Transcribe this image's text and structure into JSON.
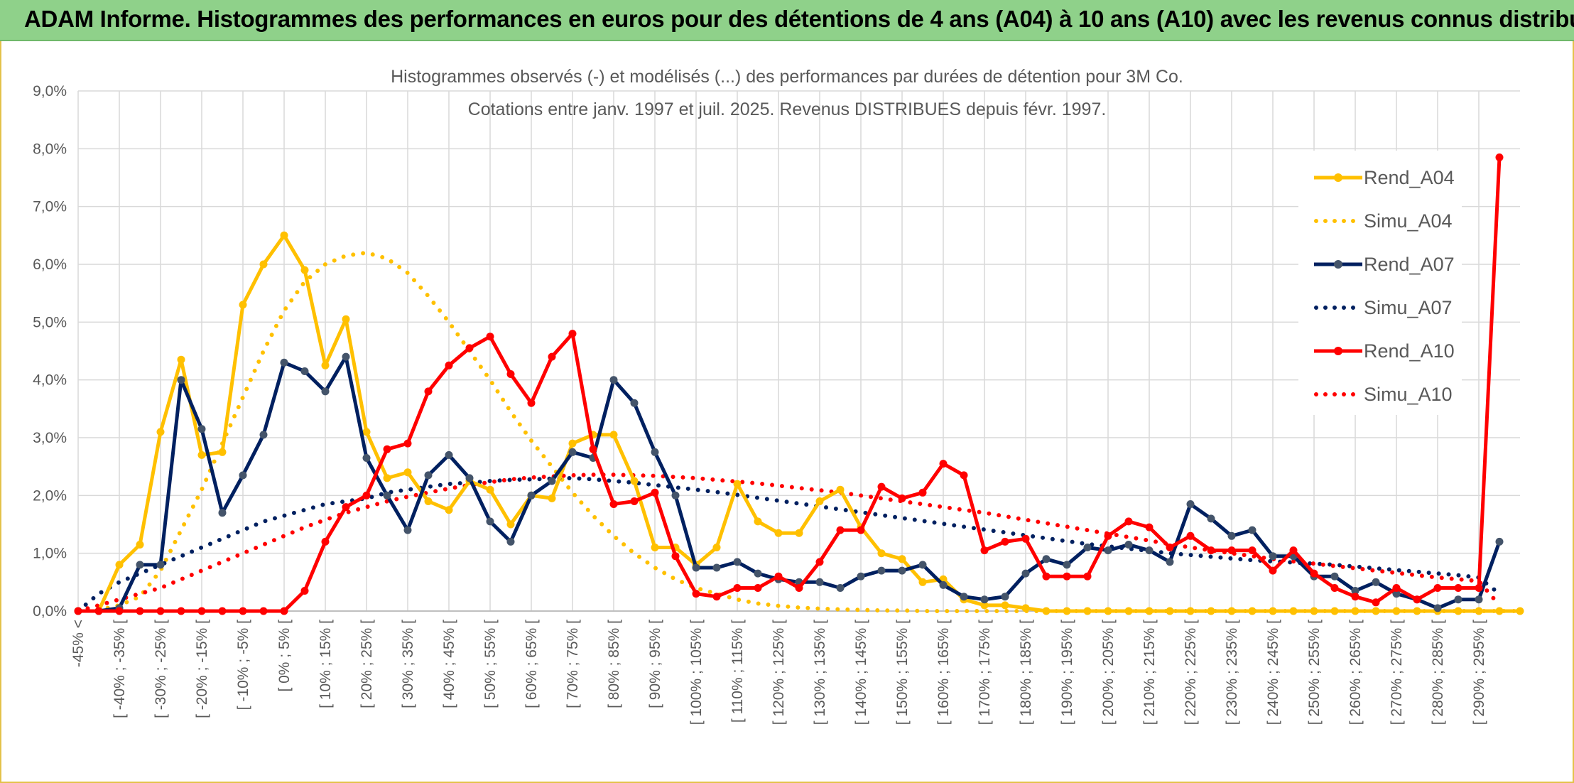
{
  "header": {
    "title": "ADAM Informe. Histogrammes des performances en euros pour des détentions de 4 ans (A04) à 10 ans (A10) avec les revenus connus distribués"
  },
  "colors": {
    "banner": "#8fd18a",
    "a04": "#ffc000",
    "a07": "#002060",
    "a07_marker": "#44546a",
    "a10": "#ff0000",
    "grid": "#d9d9d9",
    "text": "#595959"
  },
  "chart_data": {
    "type": "line",
    "title": "Histogrammes observés (-) et modélisés (...) des performances par durées de détention pour 3M Co.",
    "subtitle": "Cotations entre janv. 1997 et juil. 2025. Revenus DISTRIBUES depuis févr. 1997.",
    "xlabel": "",
    "ylabel": "",
    "ylim": [
      0,
      9
    ],
    "y_ticks": [
      "0,0%",
      "1,0%",
      "2,0%",
      "3,0%",
      "4,0%",
      "5,0%",
      "6,0%",
      "7,0%",
      "8,0%",
      "9,0%"
    ],
    "x_ticks": [
      "-45% <",
      "[ -40% ; -35% [",
      "[ -30% ; -25% [",
      "[ -20% ; -15% [",
      "[ -10% ; -5% [",
      "[ 0% ; 5% [",
      "[ 10% ; 15% [",
      "[ 20% ; 25% [",
      "[ 30% ; 35% [",
      "[ 40% ; 45% [",
      "[ 50% ; 55% [",
      "[ 60% ; 65% [",
      "[ 70% ; 75% [",
      "[ 80% ; 85% [",
      "[ 90% ; 95% [",
      "[ 100% ; 105% [",
      "[ 110% ; 115% [",
      "[ 120% ; 125% [",
      "[ 130% ; 135% [",
      "[ 140% ; 145% [",
      "[ 150% ; 155% [",
      "[ 160% ; 165% [",
      "[ 170% ; 175% [",
      "[ 180% ; 185% [",
      "[ 190% ; 195% [",
      "[ 200% ; 205% [",
      "[ 210% ; 215% [",
      "[ 220% ; 225% [",
      "[ 230% ; 235% [",
      "[ 240% ; 245% [",
      "[ 250% ; 255% [",
      "[ 260% ; 265% [",
      "[ 270% ; 275% [",
      "[ 280% ; 285% [",
      "[ 290% ; 295% ["
    ],
    "grid": true,
    "legend_position": "right",
    "series": [
      {
        "name": "Rend_A04",
        "style": "solid",
        "color": "#ffc000",
        "values": [
          0,
          0,
          0.8,
          1.15,
          3.1,
          4.35,
          2.7,
          2.75,
          5.3,
          6.0,
          6.5,
          5.9,
          4.25,
          5.05,
          3.1,
          2.3,
          2.4,
          1.9,
          1.75,
          2.25,
          2.1,
          1.5,
          2.0,
          1.95,
          2.9,
          3.05,
          3.05,
          2.25,
          1.1,
          1.1,
          0.8,
          1.1,
          2.2,
          1.55,
          1.35,
          1.35,
          1.9,
          2.1,
          1.45,
          1.0,
          0.9,
          0.5,
          0.55,
          0.2,
          0.1,
          0.1,
          0.05,
          0,
          0,
          0,
          0,
          0,
          0,
          0,
          0,
          0,
          0,
          0,
          0,
          0,
          0,
          0,
          0,
          0,
          0,
          0,
          0,
          0,
          0,
          0,
          0
        ]
      },
      {
        "name": "Simu_A04",
        "style": "dotted",
        "color": "#ffc000",
        "values": [
          0,
          0.02,
          0.1,
          0.25,
          0.7,
          1.4,
          2.1,
          2.9,
          3.7,
          4.5,
          5.2,
          5.7,
          6.0,
          6.15,
          6.2,
          6.1,
          5.85,
          5.45,
          5.0,
          4.5,
          4.0,
          3.45,
          2.95,
          2.5,
          2.05,
          1.65,
          1.3,
          1.0,
          0.75,
          0.55,
          0.4,
          0.3,
          0.2,
          0.13,
          0.09,
          0.06,
          0.04,
          0.03,
          0.02,
          0.01,
          0.01,
          0,
          0,
          0,
          0,
          0,
          0,
          0,
          0,
          0,
          0,
          0,
          0,
          0,
          0,
          0,
          0,
          0,
          0,
          0,
          0,
          0,
          0,
          0,
          0,
          0,
          0,
          0,
          0,
          0,
          0
        ]
      },
      {
        "name": "Rend_A07",
        "style": "solid",
        "color": "#002060",
        "values": [
          0,
          0,
          0.05,
          0.8,
          0.8,
          4.0,
          3.15,
          1.7,
          2.35,
          3.05,
          4.3,
          4.15,
          3.8,
          4.4,
          2.65,
          2.0,
          1.4,
          2.35,
          2.7,
          2.3,
          1.55,
          1.2,
          2.0,
          2.25,
          2.75,
          2.65,
          4.0,
          3.6,
          2.75,
          2.0,
          0.75,
          0.75,
          0.85,
          0.65,
          0.55,
          0.5,
          0.5,
          0.4,
          0.6,
          0.7,
          0.7,
          0.8,
          0.45,
          0.25,
          0.2,
          0.25,
          0.65,
          0.9,
          0.8,
          1.1,
          1.05,
          1.15,
          1.05,
          0.85,
          1.85,
          1.6,
          1.3,
          1.4,
          0.95,
          0.95,
          0.6,
          0.6,
          0.35,
          0.5,
          0.3,
          0.2,
          0.05,
          0.2,
          0.2,
          1.2
        ]
      },
      {
        "name": "Simu_A07",
        "style": "dotted",
        "color": "#002060",
        "values": [
          0,
          0.3,
          0.5,
          0.65,
          0.8,
          0.95,
          1.1,
          1.25,
          1.4,
          1.55,
          1.65,
          1.75,
          1.85,
          1.9,
          1.95,
          2.05,
          2.1,
          2.15,
          2.2,
          2.22,
          2.25,
          2.27,
          2.28,
          2.29,
          2.3,
          2.28,
          2.25,
          2.22,
          2.18,
          2.14,
          2.1,
          2.06,
          2.01,
          1.96,
          1.91,
          1.86,
          1.81,
          1.76,
          1.71,
          1.66,
          1.61,
          1.56,
          1.51,
          1.46,
          1.41,
          1.36,
          1.31,
          1.26,
          1.21,
          1.16,
          1.12,
          1.08,
          1.04,
          1.0,
          0.97,
          0.94,
          0.91,
          0.88,
          0.86,
          0.84,
          0.82,
          0.8,
          0.77,
          0.74,
          0.71,
          0.68,
          0.65,
          0.62,
          0.58,
          0.3
        ]
      },
      {
        "name": "Rend_A10",
        "style": "solid",
        "color": "#ff0000",
        "values": [
          0,
          0,
          0,
          0,
          0,
          0,
          0,
          0,
          0,
          0,
          0,
          0.35,
          1.2,
          1.8,
          2.0,
          2.8,
          2.9,
          3.8,
          4.25,
          4.55,
          4.75,
          4.1,
          3.6,
          4.4,
          4.8,
          2.8,
          1.85,
          1.9,
          2.05,
          0.95,
          0.3,
          0.25,
          0.4,
          0.4,
          0.6,
          0.4,
          0.85,
          1.4,
          1.4,
          2.15,
          1.95,
          2.05,
          2.55,
          2.35,
          1.05,
          1.2,
          1.25,
          0.6,
          0.6,
          0.6,
          1.3,
          1.55,
          1.45,
          1.1,
          1.3,
          1.05,
          1.05,
          1.05,
          0.7,
          1.05,
          0.65,
          0.4,
          0.25,
          0.15,
          0.4,
          0.2,
          0.4,
          0.4,
          0.4,
          7.85
        ]
      },
      {
        "name": "Simu_A10",
        "style": "dotted",
        "color": "#ff0000",
        "values": [
          0,
          0.1,
          0.2,
          0.3,
          0.4,
          0.55,
          0.7,
          0.85,
          1.0,
          1.15,
          1.3,
          1.45,
          1.58,
          1.7,
          1.8,
          1.9,
          1.98,
          2.05,
          2.12,
          2.18,
          2.23,
          2.28,
          2.31,
          2.33,
          2.35,
          2.36,
          2.36,
          2.35,
          2.34,
          2.32,
          2.3,
          2.27,
          2.24,
          2.21,
          2.17,
          2.13,
          2.09,
          2.05,
          2.0,
          1.95,
          1.9,
          1.85,
          1.8,
          1.75,
          1.7,
          1.64,
          1.58,
          1.52,
          1.46,
          1.4,
          1.34,
          1.28,
          1.22,
          1.16,
          1.1,
          1.05,
          1.0,
          0.95,
          0.9,
          0.86,
          0.82,
          0.78,
          0.74,
          0.7,
          0.66,
          0.62,
          0.58,
          0.55,
          0.52,
          0.1
        ]
      }
    ]
  }
}
